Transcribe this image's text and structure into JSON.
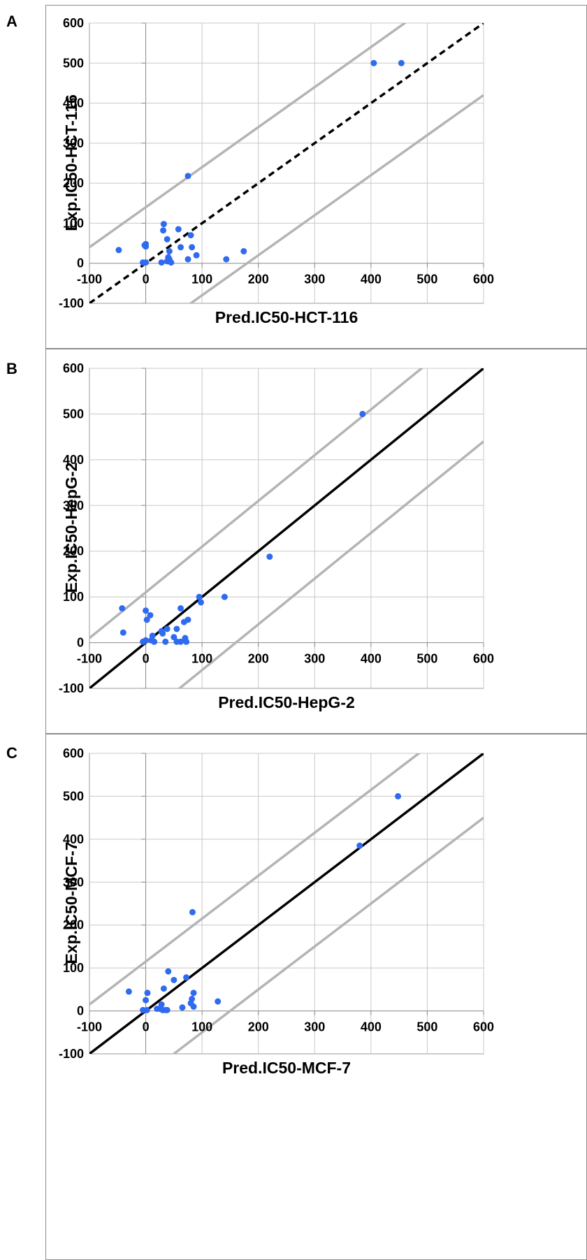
{
  "chart_data": [
    {
      "panel_label": "A",
      "type": "scatter",
      "xlabel": "Pred.IC50-HCT-116",
      "ylabel": "Exp.IC50-HCT-116",
      "xlim": [
        -100,
        600
      ],
      "ylim": [
        -100,
        600
      ],
      "x_ticks": [
        -100,
        0,
        100,
        200,
        300,
        400,
        500,
        600
      ],
      "y_ticks": [
        -100,
        0,
        100,
        200,
        300,
        400,
        500,
        600
      ],
      "grid": "major gridlines at 0 and every 100 on both axes (light gray)",
      "identity_line_style": "dashed",
      "point_color": "#2f6bf0",
      "line_color": "#000000",
      "band_color": "#b4b4b4",
      "series": [
        {
          "points": [
            [
              -48,
              33
            ],
            [
              -5,
              2
            ],
            [
              0,
              2
            ],
            [
              -2,
              45
            ],
            [
              0,
              42
            ],
            [
              0,
              48
            ],
            [
              32,
              98
            ],
            [
              31,
              82
            ],
            [
              38,
              60
            ],
            [
              42,
              30
            ],
            [
              58,
              85
            ],
            [
              62,
              40
            ],
            [
              80,
              70
            ],
            [
              82,
              40
            ],
            [
              90,
              20
            ],
            [
              75,
              218
            ],
            [
              28,
              2
            ],
            [
              38,
              5
            ],
            [
              40,
              15
            ],
            [
              42,
              10
            ],
            [
              45,
              2
            ],
            [
              75,
              10
            ],
            [
              143,
              10
            ],
            [
              174,
              30
            ],
            [
              405,
              500
            ],
            [
              454,
              500
            ]
          ]
        }
      ],
      "reference_lines": [
        {
          "style": "dashed",
          "x": [
            -100,
            600
          ],
          "y": [
            -100,
            600
          ]
        },
        {
          "style": "solid",
          "x": [
            -100,
            600
          ],
          "y": [
            40,
            740
          ]
        },
        {
          "style": "solid",
          "x": [
            -100,
            600
          ],
          "y": [
            -280,
            420
          ]
        }
      ]
    },
    {
      "panel_label": "B",
      "type": "scatter",
      "xlabel": "Pred.IC50-HepG-2",
      "ylabel": "Exp.IC50-HepG-2",
      "xlim": [
        -100,
        600
      ],
      "ylim": [
        -100,
        600
      ],
      "x_ticks": [
        -100,
        0,
        100,
        200,
        300,
        400,
        500,
        600
      ],
      "y_ticks": [
        -100,
        0,
        100,
        200,
        300,
        400,
        500,
        600
      ],
      "grid": "major gridlines at 0 and every 100 on both axes (light gray)",
      "identity_line_style": "solid",
      "point_color": "#2f6bf0",
      "line_color": "#000000",
      "band_color": "#b4b4b4",
      "series": [
        {
          "points": [
            [
              -42,
              75
            ],
            [
              -40,
              22
            ],
            [
              -5,
              2
            ],
            [
              0,
              5
            ],
            [
              0,
              70
            ],
            [
              2,
              50
            ],
            [
              8,
              60
            ],
            [
              12,
              15
            ],
            [
              10,
              5
            ],
            [
              15,
              2
            ],
            [
              28,
              25
            ],
            [
              30,
              20
            ],
            [
              38,
              30
            ],
            [
              35,
              2
            ],
            [
              50,
              12
            ],
            [
              55,
              2
            ],
            [
              55,
              30
            ],
            [
              62,
              2
            ],
            [
              62,
              75
            ],
            [
              68,
              45
            ],
            [
              70,
              10
            ],
            [
              75,
              50
            ],
            [
              72,
              2
            ],
            [
              95,
              100
            ],
            [
              98,
              88
            ],
            [
              140,
              100
            ],
            [
              220,
              188
            ],
            [
              385,
              500
            ]
          ]
        }
      ],
      "reference_lines": [
        {
          "style": "solid",
          "x": [
            -100,
            600
          ],
          "y": [
            -100,
            600
          ]
        },
        {
          "style": "solid",
          "x": [
            -100,
            600
          ],
          "y": [
            10,
            710
          ]
        },
        {
          "style": "solid",
          "x": [
            -100,
            600
          ],
          "y": [
            -260,
            440
          ]
        }
      ]
    },
    {
      "panel_label": "C",
      "type": "scatter",
      "xlabel": "Pred.IC50-MCF-7",
      "ylabel": "Exp.IC50-MCF-7",
      "xlim": [
        -100,
        600
      ],
      "ylim": [
        -100,
        600
      ],
      "x_ticks": [
        -100,
        0,
        100,
        200,
        300,
        400,
        500,
        600
      ],
      "y_ticks": [
        -100,
        0,
        100,
        200,
        300,
        400,
        500,
        600
      ],
      "grid": "major gridlines at 0 and every 100 on both axes (light gray)",
      "identity_line_style": "solid",
      "point_color": "#2f6bf0",
      "line_color": "#000000",
      "band_color": "#b4b4b4",
      "series": [
        {
          "points": [
            [
              -30,
              45
            ],
            [
              -5,
              2
            ],
            [
              0,
              25
            ],
            [
              2,
              2
            ],
            [
              3,
              42
            ],
            [
              20,
              5
            ],
            [
              25,
              5
            ],
            [
              28,
              15
            ],
            [
              30,
              2
            ],
            [
              32,
              52
            ],
            [
              35,
              2
            ],
            [
              38,
              2
            ],
            [
              40,
              92
            ],
            [
              50,
              72
            ],
            [
              65,
              8
            ],
            [
              72,
              78
            ],
            [
              80,
              18
            ],
            [
              82,
              28
            ],
            [
              85,
              42
            ],
            [
              85,
              10
            ],
            [
              83,
              230
            ],
            [
              128,
              22
            ],
            [
              380,
              385
            ],
            [
              448,
              500
            ]
          ]
        }
      ],
      "reference_lines": [
        {
          "style": "solid",
          "x": [
            -100,
            600
          ],
          "y": [
            -100,
            600
          ]
        },
        {
          "style": "solid",
          "x": [
            -100,
            600
          ],
          "y": [
            15,
            715
          ]
        },
        {
          "style": "solid",
          "x": [
            -100,
            600
          ],
          "y": [
            -250,
            450
          ]
        }
      ]
    }
  ]
}
